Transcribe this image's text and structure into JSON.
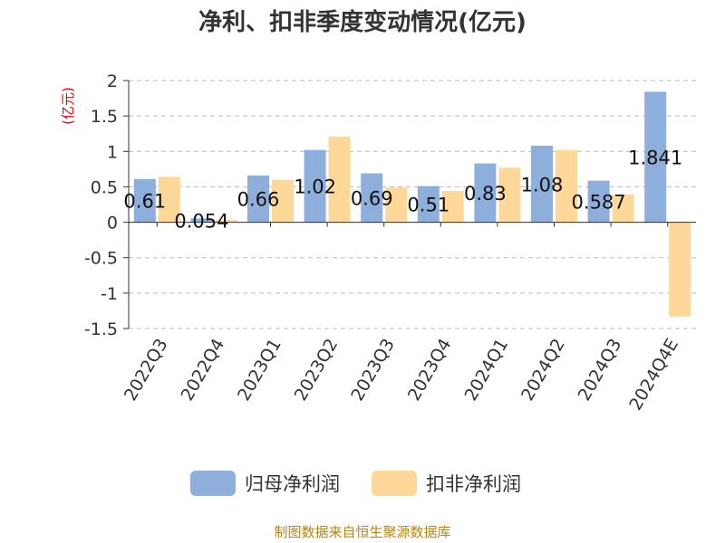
{
  "chart_data": {
    "type": "bar",
    "title": "净利、扣非季度变动情况(亿元)",
    "ylabel": "(亿元)",
    "xlabel": "",
    "categories": [
      "2022Q3",
      "2022Q4",
      "2023Q1",
      "2023Q2",
      "2023Q3",
      "2023Q4",
      "2024Q1",
      "2024Q2",
      "2024Q3",
      "2024Q4E"
    ],
    "series": [
      {
        "name": "归母净利润",
        "color": "#8eaedb",
        "values": [
          0.61,
          0.054,
          0.66,
          1.02,
          0.69,
          0.51,
          0.83,
          1.08,
          0.587,
          1.841
        ],
        "labels": [
          "0.61",
          "0.054",
          "0.66",
          "1.02",
          "0.69",
          "0.51",
          "0.83",
          "1.08",
          "0.587",
          "1.841"
        ]
      },
      {
        "name": "扣非净利润",
        "color": "#fdd898",
        "values": [
          0.64,
          0.03,
          0.6,
          1.21,
          0.49,
          0.44,
          0.77,
          1.02,
          0.39,
          -1.33
        ]
      }
    ],
    "ylim": [
      -1.5,
      2
    ],
    "yticks": [
      "2",
      "1.5",
      "1",
      "0.5",
      "0",
      "-0.5",
      "-1",
      "-1.5"
    ],
    "ytick_values": [
      2,
      1.5,
      1,
      0.5,
      0,
      -0.5,
      -1,
      -1.5
    ],
    "grid": true,
    "legend_position": "bottom"
  },
  "source_text": "制图数据来自恒生聚源数据库"
}
